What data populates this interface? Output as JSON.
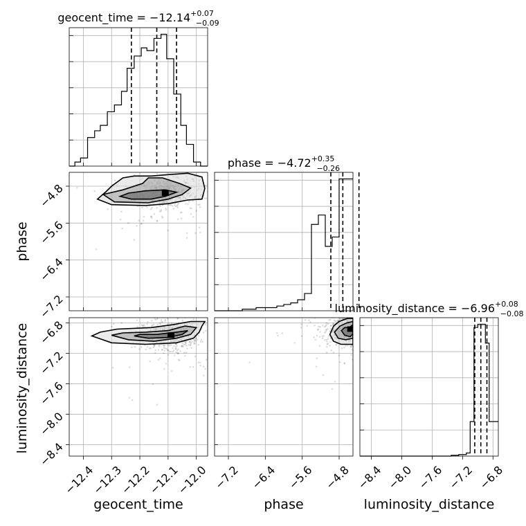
{
  "chart_data": {
    "type": "corner",
    "parameters": [
      "geocent_time",
      "phase",
      "luminosity_distance"
    ],
    "axis_labels": {
      "geocent_time": "geocent_time",
      "phase": "phase",
      "luminosity_distance": "luminosity_distance"
    },
    "ranges": {
      "geocent_time": [
        -12.45,
        -11.96
      ],
      "phase": [
        -7.5,
        -4.5
      ],
      "luminosity_distance": [
        -8.55,
        -6.73
      ]
    },
    "ticks": {
      "geocent_time": [
        -12.4,
        -12.3,
        -12.2,
        -12.1,
        -12.0
      ],
      "phase": [
        -7.2,
        -6.4,
        -5.6,
        -4.8
      ],
      "luminosity_distance": [
        -8.4,
        -8.0,
        -7.6,
        -7.2,
        -6.8
      ]
    },
    "tick_labels": {
      "geocent_time": [
        "−12.4",
        "−12.3",
        "−12.2",
        "−12.1",
        "−12.0"
      ],
      "phase": [
        "−7.2",
        "−6.4",
        "−5.6",
        "−4.8"
      ],
      "luminosity_distance": [
        "−8.4",
        "−8.0",
        "−7.6",
        "−7.2",
        "−6.8"
      ]
    },
    "titles": {
      "geocent_time": {
        "name": "geocent_time",
        "median": "−12.14",
        "plus": "+0.07",
        "minus": "−0.09"
      },
      "phase": {
        "name": "phase",
        "median": "−4.72",
        "plus": "+0.35",
        "minus": "−0.26"
      },
      "luminosity_distance": {
        "name": "luminosity_distance",
        "median": "−6.96",
        "plus": "+0.08",
        "minus": "−0.08"
      }
    },
    "quantiles": {
      "geocent_time": [
        -12.23,
        -12.14,
        -12.07
      ],
      "phase": [
        -4.98,
        -4.72,
        -4.37
      ],
      "luminosity_distance": [
        -7.04,
        -6.96,
        -6.88
      ]
    },
    "histograms": {
      "geocent_time": {
        "edges": [
          -12.45,
          -12.43,
          -12.41,
          -12.385,
          -12.36,
          -12.34,
          -12.315,
          -12.29,
          -12.265,
          -12.245,
          -12.22,
          -12.195,
          -12.175,
          -12.15,
          -12.125,
          -12.105,
          -12.08,
          -12.055,
          -12.035,
          -12.01,
          -11.985,
          -11.96
        ],
        "counts": [
          0.0,
          0.03,
          0.06,
          0.21,
          0.26,
          0.3,
          0.4,
          0.45,
          0.55,
          0.72,
          0.81,
          0.87,
          0.85,
          0.94,
          0.97,
          0.79,
          0.53,
          0.3,
          0.16,
          0.03,
          0.0
        ]
      },
      "phase": {
        "edges": [
          -7.5,
          -7.35,
          -7.2,
          -7.05,
          -6.9,
          -6.75,
          -6.6,
          -6.45,
          -6.3,
          -6.15,
          -6.0,
          -5.85,
          -5.7,
          -5.55,
          -5.4,
          -5.25,
          -5.1,
          -4.95,
          -4.8,
          -4.65,
          -4.5
        ],
        "counts": [
          0.0,
          0.0,
          0.0,
          0.0,
          0.01,
          0.01,
          0.02,
          0.02,
          0.02,
          0.03,
          0.04,
          0.05,
          0.07,
          0.11,
          0.55,
          0.61,
          0.41,
          0.47,
          0.84,
          0.84
        ]
      },
      "luminosity_distance": {
        "edges": [
          -8.55,
          -8.45,
          -8.35,
          -8.25,
          -8.15,
          -8.05,
          -7.95,
          -7.85,
          -7.75,
          -7.65,
          -7.55,
          -7.45,
          -7.35,
          -7.25,
          -7.15,
          -7.1,
          -7.05,
          -7.0,
          -6.95,
          -6.9,
          -6.85,
          -6.8,
          -6.73
        ],
        "counts": [
          0.0,
          0.0,
          0.0,
          0.0,
          0.0,
          0.0,
          0.0,
          0.0,
          0.0,
          0.0,
          0.0,
          0.0,
          0.005,
          0.01,
          0.02,
          0.22,
          0.82,
          0.84,
          0.84,
          0.72,
          0.22,
          0.22
        ]
      }
    },
    "pairs": [
      {
        "x": "geocent_time",
        "y": "phase",
        "peak": [
          -12.11,
          -4.95
        ],
        "contours": [
          [
            [
              -12.27,
              -5.02
            ],
            [
              -12.23,
              -5.08
            ],
            [
              -12.16,
              -5.08
            ],
            [
              -12.11,
              -5.02
            ],
            [
              -12.07,
              -4.93
            ],
            [
              -12.11,
              -4.88
            ],
            [
              -12.18,
              -4.9
            ],
            [
              -12.24,
              -4.95
            ]
          ],
          [
            [
              -12.33,
              -4.98
            ],
            [
              -12.29,
              -5.14
            ],
            [
              -12.17,
              -5.16
            ],
            [
              -12.1,
              -5.08
            ],
            [
              -12.05,
              -4.98
            ],
            [
              -12.02,
              -4.84
            ],
            [
              -12.06,
              -4.74
            ],
            [
              -12.12,
              -4.62
            ],
            [
              -12.17,
              -4.62
            ],
            [
              -12.19,
              -4.74
            ],
            [
              -12.26,
              -4.88
            ]
          ],
          [
            [
              -12.35,
              -5.08
            ],
            [
              -12.3,
              -5.2
            ],
            [
              -12.18,
              -5.22
            ],
            [
              -12.1,
              -5.18
            ],
            [
              -12.03,
              -5.1
            ],
            [
              -11.98,
              -5.08
            ],
            [
              -11.97,
              -4.85
            ],
            [
              -11.98,
              -4.6
            ],
            [
              -12.03,
              -4.52
            ],
            [
              -12.1,
              -4.55
            ],
            [
              -12.16,
              -4.58
            ],
            [
              -12.22,
              -4.58
            ],
            [
              -12.26,
              -4.62
            ],
            [
              -12.3,
              -4.8
            ],
            [
              -12.32,
              -4.92
            ]
          ]
        ]
      },
      {
        "x": "geocent_time",
        "y": "luminosity_distance",
        "peak": [
          -12.09,
          -6.96
        ],
        "contours": [
          [
            [
              -12.22,
              -6.97
            ],
            [
              -12.17,
              -7.0
            ],
            [
              -12.1,
              -6.99
            ],
            [
              -12.05,
              -6.95
            ],
            [
              -12.03,
              -6.9
            ],
            [
              -12.07,
              -6.92
            ],
            [
              -12.14,
              -6.95
            ],
            [
              -12.2,
              -6.95
            ]
          ],
          [
            [
              -12.3,
              -6.96
            ],
            [
              -12.24,
              -7.02
            ],
            [
              -12.15,
              -7.04
            ],
            [
              -12.07,
              -7.0
            ],
            [
              -12.02,
              -6.95
            ],
            [
              -12.0,
              -6.86
            ],
            [
              -12.04,
              -6.84
            ],
            [
              -12.1,
              -6.9
            ],
            [
              -12.18,
              -6.92
            ],
            [
              -12.26,
              -6.93
            ]
          ],
          [
            [
              -12.37,
              -6.97
            ],
            [
              -12.3,
              -7.06
            ],
            [
              -12.18,
              -7.08
            ],
            [
              -12.07,
              -7.06
            ],
            [
              -12.01,
              -7.0
            ],
            [
              -11.99,
              -6.92
            ],
            [
              -11.98,
              -6.84
            ],
            [
              -11.97,
              -6.78
            ],
            [
              -12.02,
              -6.78
            ],
            [
              -12.08,
              -6.82
            ],
            [
              -12.16,
              -6.86
            ],
            [
              -12.28,
              -6.88
            ],
            [
              -12.34,
              -6.92
            ]
          ]
        ]
      },
      {
        "x": "phase",
        "y": "luminosity_distance",
        "peak": [
          -4.55,
          -6.88
        ],
        "contours": [
          [
            [
              -4.75,
              -6.9
            ],
            [
              -4.68,
              -6.96
            ],
            [
              -4.56,
              -6.98
            ],
            [
              -4.5,
              -6.94
            ],
            [
              -4.5,
              -6.82
            ],
            [
              -4.58,
              -6.86
            ],
            [
              -4.68,
              -6.86
            ]
          ],
          [
            [
              -4.9,
              -6.92
            ],
            [
              -4.82,
              -7.0
            ],
            [
              -4.66,
              -7.02
            ],
            [
              -4.5,
              -7.0
            ],
            [
              -4.5,
              -6.78
            ],
            [
              -4.64,
              -6.8
            ],
            [
              -4.78,
              -6.84
            ]
          ],
          [
            [
              -5.0,
              -6.95
            ],
            [
              -4.92,
              -7.04
            ],
            [
              -4.76,
              -7.08
            ],
            [
              -4.5,
              -7.08
            ],
            [
              -4.5,
              -6.74
            ],
            [
              -4.62,
              -6.74
            ],
            [
              -4.8,
              -6.78
            ],
            [
              -4.92,
              -6.84
            ]
          ]
        ]
      }
    ],
    "grid": true
  }
}
